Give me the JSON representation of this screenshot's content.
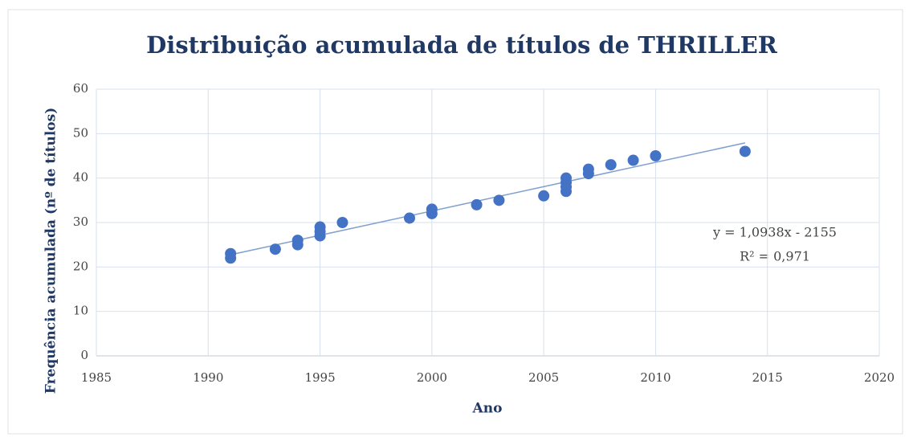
{
  "chart_data": {
    "type": "scatter",
    "title": "Distribuição acumulada de títulos de THRILLER",
    "xlabel": "Ano",
    "ylabel": "Frequência acumulada (nº de títulos)",
    "x": [
      1991,
      1991,
      1993,
      1994,
      1994,
      1995,
      1995,
      1995,
      1996,
      1999,
      2000,
      2000,
      2002,
      2003,
      2005,
      2006,
      2006,
      2006,
      2006,
      2007,
      2007,
      2008,
      2009,
      2010,
      2014
    ],
    "values": [
      22,
      23,
      24,
      25,
      26,
      27,
      28,
      29,
      30,
      31,
      32,
      33,
      34,
      35,
      36,
      37,
      38,
      39,
      40,
      41,
      42,
      43,
      44,
      45,
      46
    ],
    "color": "#4472c4",
    "xlim": [
      1985,
      2020
    ],
    "xticks": [
      1985,
      1990,
      1995,
      2000,
      2005,
      2010,
      2015,
      2020
    ],
    "ylim": [
      0,
      60
    ],
    "yticks": [
      0,
      10,
      20,
      30,
      40,
      50,
      60
    ],
    "grid": true,
    "trendline": {
      "slope": 1.0938,
      "intercept": -2155,
      "color": "#7f9fd0",
      "equation": "y = 1,0938x - 2155",
      "r2": "R² = 0,971"
    }
  }
}
